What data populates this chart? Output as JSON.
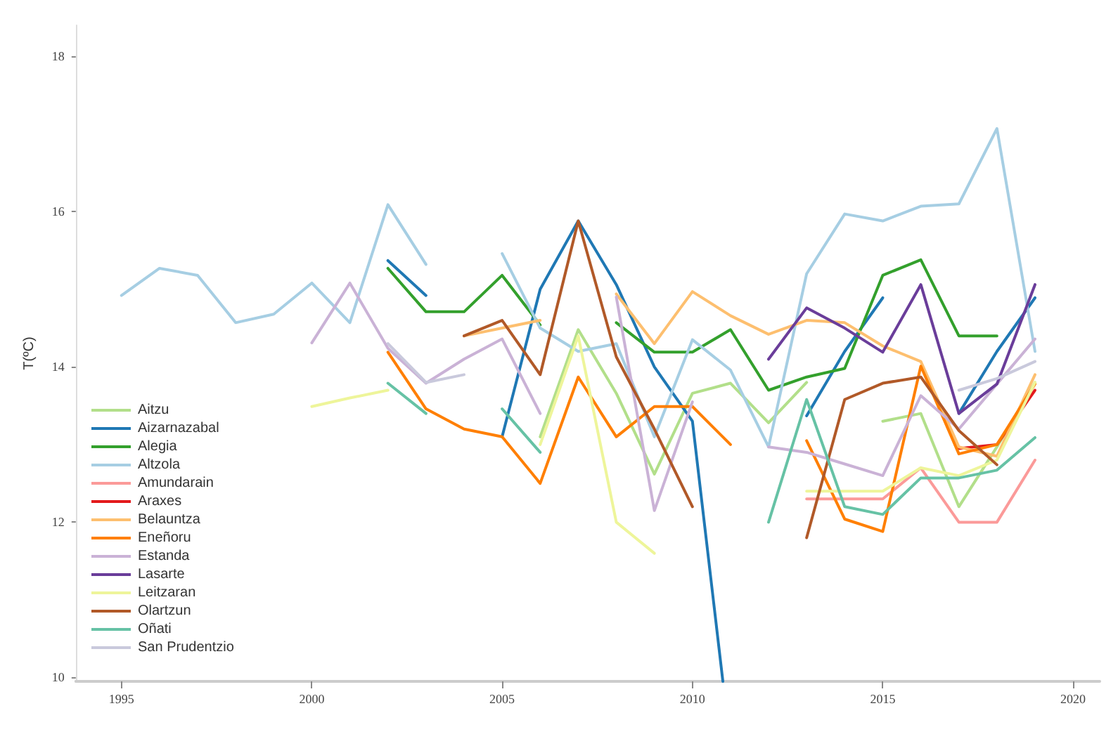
{
  "chart_data": {
    "type": "line",
    "ylabel": "T(ºC)",
    "x": [
      1995,
      1996,
      1997,
      1998,
      1999,
      2000,
      2001,
      2002,
      2003,
      2004,
      2005,
      2006,
      2007,
      2008,
      2009,
      2010,
      2011,
      2012,
      2013,
      2014,
      2015,
      2016,
      2017,
      2018,
      2019
    ],
    "xlim": [
      1993.8,
      2020.7
    ],
    "xticks": [
      1995,
      2000,
      2005,
      2010,
      2015,
      2020
    ],
    "ylim": [
      9.95,
      18.4
    ],
    "yticks": [
      10,
      12,
      14,
      16,
      18
    ],
    "grid": false,
    "legend": "bottom left",
    "marker": "none",
    "line_style": "solid",
    "series": [
      {
        "name": "Aitzu",
        "color": "#b2df8a",
        "values": [
          null,
          null,
          null,
          null,
          null,
          null,
          null,
          null,
          null,
          null,
          null,
          13.1,
          14.48,
          13.66,
          12.62,
          13.66,
          13.79,
          13.28,
          13.8,
          null,
          13.3,
          13.4,
          12.2,
          12.97,
          13.8
        ]
      },
      {
        "name": "Aizarnazabal",
        "color": "#1f78b4",
        "x": [
          2002,
          2003,
          2004,
          2005,
          2006,
          2007,
          2008,
          2009,
          2010,
          2010.8,
          2012,
          2013,
          2014,
          2015,
          2016,
          2017,
          2018,
          2019
        ],
        "values": [
          15.37,
          14.92,
          null,
          13.1,
          15.0,
          15.88,
          15.06,
          14.0,
          13.3,
          9.95,
          null,
          13.37,
          14.2,
          14.89,
          null,
          13.4,
          14.2,
          14.89
        ]
      },
      {
        "name": "Alegia",
        "color": "#33a02c",
        "values": [
          null,
          null,
          null,
          null,
          null,
          null,
          null,
          15.27,
          14.71,
          14.71,
          15.18,
          14.54,
          null,
          14.57,
          14.19,
          14.19,
          14.48,
          13.7,
          13.87,
          13.98,
          15.18,
          15.38,
          14.4,
          14.4,
          null
        ]
      },
      {
        "name": "Altzola",
        "color": "#a6cee3",
        "values": [
          14.92,
          15.27,
          15.18,
          14.57,
          14.68,
          15.08,
          14.57,
          16.09,
          15.32,
          null,
          15.46,
          14.5,
          14.2,
          14.3,
          13.1,
          14.35,
          13.96,
          12.97,
          15.2,
          15.97,
          15.88,
          16.07,
          16.1,
          17.07,
          14.2
        ]
      },
      {
        "name": "Amundarain",
        "color": "#fb9a99",
        "values": [
          null,
          null,
          null,
          null,
          null,
          null,
          null,
          null,
          null,
          null,
          null,
          null,
          null,
          null,
          null,
          null,
          null,
          null,
          12.3,
          12.3,
          12.3,
          12.7,
          12.0,
          12.0,
          12.8
        ]
      },
      {
        "name": "Araxes",
        "color": "#e31a1c",
        "values": [
          null,
          null,
          null,
          null,
          null,
          null,
          null,
          null,
          null,
          null,
          null,
          null,
          null,
          null,
          null,
          null,
          null,
          null,
          null,
          null,
          null,
          null,
          12.95,
          13.0,
          13.7
        ]
      },
      {
        "name": "Belauntza",
        "color": "#fdbf6f",
        "values": [
          null,
          null,
          null,
          null,
          null,
          null,
          null,
          null,
          null,
          14.4,
          14.5,
          14.6,
          null,
          14.94,
          14.3,
          14.97,
          14.66,
          14.42,
          14.6,
          14.57,
          14.27,
          14.07,
          12.97,
          12.85,
          13.9
        ]
      },
      {
        "name": "Eneñoru",
        "color": "#ff7f00",
        "values": [
          null,
          null,
          null,
          null,
          null,
          null,
          null,
          14.19,
          13.46,
          13.2,
          13.1,
          12.5,
          13.87,
          13.1,
          13.49,
          13.49,
          13.0,
          null,
          13.05,
          12.04,
          11.88,
          14.01,
          12.88,
          13.0,
          13.78
        ]
      },
      {
        "name": "Estanda",
        "color": "#cab2d6",
        "values": [
          null,
          null,
          null,
          null,
          null,
          14.31,
          15.08,
          14.24,
          13.79,
          14.1,
          14.36,
          13.4,
          null,
          14.9,
          12.15,
          13.55,
          null,
          12.97,
          12.9,
          12.75,
          12.6,
          13.63,
          13.2,
          13.78,
          14.36
        ]
      },
      {
        "name": "Lasarte",
        "color": "#6a3d9a",
        "values": [
          null,
          null,
          null,
          null,
          null,
          null,
          null,
          null,
          null,
          null,
          null,
          null,
          null,
          null,
          null,
          null,
          null,
          14.1,
          14.76,
          14.5,
          14.19,
          15.06,
          13.4,
          13.78,
          15.06
        ]
      },
      {
        "name": "Leitzaran",
        "color": "#eef59a",
        "values": [
          null,
          null,
          null,
          null,
          null,
          13.49,
          13.6,
          13.7,
          null,
          null,
          null,
          13.0,
          14.4,
          12.0,
          11.6,
          null,
          null,
          null,
          12.4,
          12.4,
          12.4,
          12.7,
          12.6,
          12.8,
          13.8
        ]
      },
      {
        "name": "Olartzun",
        "color": "#b15928",
        "values": [
          null,
          null,
          null,
          null,
          null,
          null,
          null,
          null,
          null,
          14.4,
          14.6,
          13.9,
          15.88,
          14.13,
          13.2,
          12.2,
          null,
          null,
          11.8,
          13.58,
          13.79,
          13.87,
          13.18,
          12.74,
          null
        ]
      },
      {
        "name": "Oñati",
        "color": "#66c2a5",
        "values": [
          null,
          null,
          null,
          null,
          null,
          null,
          null,
          13.79,
          13.4,
          null,
          13.46,
          12.9,
          null,
          null,
          null,
          null,
          null,
          12.0,
          13.58,
          12.2,
          12.1,
          12.57,
          12.57,
          12.67,
          13.09
        ]
      },
      {
        "name": "San Prudentzio",
        "color": "#c9c9dc",
        "values": [
          null,
          null,
          null,
          null,
          null,
          null,
          null,
          14.3,
          13.8,
          13.9,
          null,
          null,
          null,
          null,
          null,
          null,
          null,
          null,
          null,
          null,
          null,
          null,
          13.7,
          13.85,
          14.07
        ]
      }
    ]
  }
}
